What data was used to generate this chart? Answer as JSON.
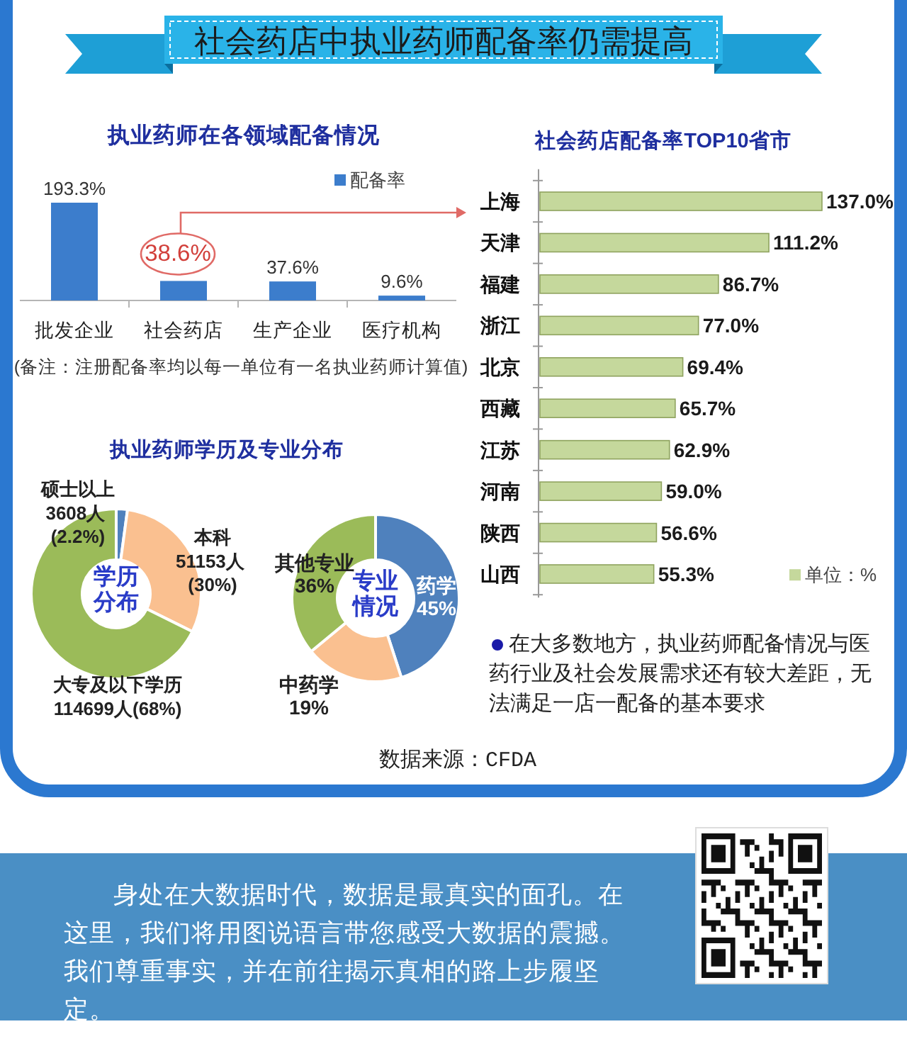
{
  "chart_data": [
    {
      "type": "other",
      "title": "社会药店中执业药师配备率仍需提高"
    },
    {
      "type": "bar",
      "title": "执业药师在各领域配备情况",
      "categories": [
        "批发企业",
        "社会药店",
        "生产企业",
        "医疗机构"
      ],
      "series": [
        {
          "name": "配备率",
          "color": "#3c7dcc",
          "values": [
            193.3,
            38.6,
            37.6,
            9.6
          ],
          "value_labels": [
            "193.3%",
            "38.6%",
            "37.6%",
            "9.6%"
          ]
        }
      ],
      "legend": "top right",
      "annotations": [
        "(备注：注册配备率均以每一单位有一名执业药师计算值)"
      ]
    },
    {
      "type": "bar",
      "orientation": "horizontal",
      "title": "社会药店配备率TOP10省市",
      "categories": [
        "上海",
        "天津",
        "福建",
        "浙江",
        "北京",
        "西藏",
        "江苏",
        "河南",
        "陕西",
        "山西"
      ],
      "series": [
        {
          "name": "单位：%",
          "color": "#c5d89c",
          "values": [
            137.0,
            111.2,
            86.7,
            77.0,
            69.4,
            65.7,
            62.9,
            59.0,
            56.6,
            55.3
          ],
          "value_labels": [
            "137.0%",
            "111.2%",
            "86.7%",
            "77.0%",
            "69.4%",
            "65.7%",
            "62.9%",
            "59.0%",
            "56.6%",
            "55.3%"
          ]
        }
      ],
      "legend": "bottom right",
      "annotations": [
        "在大多数地方，执业药师配备情况与医药行业及社会发展需求还有较大差距，无法满足一店一配备的基本要求"
      ]
    },
    {
      "type": "donut",
      "title": "执业药师学历及专业分布",
      "categories": [
        "硕士以上",
        "本科",
        "大专及以下学历"
      ],
      "values": [
        3608,
        51153,
        114699
      ],
      "colors": [
        "#4f81bd",
        "#fac090",
        "#9bbb59"
      ],
      "value_labels": [
        "3608人 (2.2%)",
        "51153人 (30%)",
        "114699人(68%)"
      ],
      "annotations": [
        "学历分布"
      ]
    },
    {
      "type": "donut",
      "categories": [
        "药学",
        "中药学",
        "其他专业"
      ],
      "values": [
        45,
        19,
        36
      ],
      "colors": [
        "#4f81bd",
        "#fac090",
        "#9bbb59"
      ],
      "value_labels": [
        "45%",
        "19%",
        "36%"
      ],
      "annotations": [
        "专业情况"
      ]
    },
    {
      "type": "other",
      "annotations": [
        "数据来源：CFDA",
        "身处在大数据时代，数据是最真实的面孔。在这里，我们将用图说语言带您感受大数据的震撼。我们尊重事实，并在前往揭示真相的路上步履坚定。"
      ]
    }
  ]
}
